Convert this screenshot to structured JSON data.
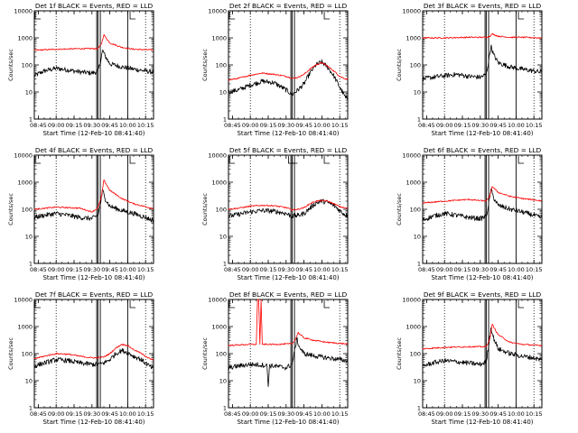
{
  "figure": {
    "xlabel": "Start Time (12-Feb-10 08:41:40)",
    "ylabel": "Counts/sec",
    "x_tick_labels": [
      "08:45",
      "09:00",
      "09:15",
      "09:30",
      "09:45",
      "10:00",
      "10:15"
    ],
    "y_tick_labels": [
      "1",
      "10",
      "100",
      "1000",
      "10000"
    ],
    "colors": {
      "events": "#000000",
      "lld": "#ff0000",
      "background": "#ffffff"
    }
  },
  "chart_data": [
    {
      "type": "line",
      "title": "Det 1f BLACK = Events, RED = LLD",
      "xlabel": "Start Time (12-Feb-10 08:41:40)",
      "ylabel": "Counts/sec",
      "xlim": [
        "08:41:40",
        "10:21:40"
      ],
      "ylim": [
        1,
        10000
      ],
      "yscale": "log",
      "markers": {
        "dotted": [
          "09:00",
          "10:15"
        ],
        "solid": [
          "09:34",
          "09:35",
          "09:37",
          "10:00"
        ],
        "saa": [
          "08:41",
          "10:02"
        ]
      },
      "series": [
        {
          "name": "Events",
          "color": "#000000",
          "x": [
            "08:41:40",
            "08:50",
            "09:00",
            "09:10",
            "09:20",
            "09:30",
            "09:35",
            "09:37",
            "09:39",
            "09:41",
            "09:45",
            "09:55",
            "10:05",
            "10:15",
            "10:20"
          ],
          "values": [
            40,
            60,
            75,
            65,
            55,
            50,
            58,
            120,
            350,
            220,
            110,
            85,
            70,
            60,
            55
          ]
        },
        {
          "name": "LLD",
          "color": "#ff0000",
          "x": [
            "08:41:40",
            "09:00",
            "09:20",
            "09:35",
            "09:38",
            "09:40",
            "09:45",
            "09:55",
            "10:05",
            "10:20"
          ],
          "values": [
            350,
            380,
            400,
            400,
            600,
            1300,
            650,
            450,
            380,
            360
          ]
        }
      ]
    },
    {
      "type": "line",
      "title": "Det 2f BLACK = Events, RED = LLD",
      "xlabel": "Start Time (12-Feb-10 08:41:40)",
      "ylabel": "Counts/sec",
      "xlim": [
        "08:41:40",
        "10:21:40"
      ],
      "ylim": [
        1,
        10000
      ],
      "yscale": "log",
      "markers": {
        "dotted": [
          "09:00",
          "10:15"
        ],
        "solid": [
          "09:34",
          "09:35",
          "09:37"
        ],
        "saa": [
          "08:41",
          "10:02"
        ]
      },
      "series": [
        {
          "name": "Events",
          "color": "#000000",
          "x": [
            "08:41:40",
            "08:50",
            "09:00",
            "09:10",
            "09:20",
            "09:30",
            "09:35",
            "09:40",
            "09:45",
            "09:50",
            "09:55",
            "10:00",
            "10:05",
            "10:10",
            "10:15",
            "10:20"
          ],
          "values": [
            10,
            12,
            18,
            25,
            22,
            12,
            8,
            12,
            20,
            50,
            100,
            130,
            80,
            40,
            15,
            6
          ]
        },
        {
          "name": "LLD",
          "color": "#ff0000",
          "x": [
            "08:41:40",
            "08:50",
            "09:00",
            "09:10",
            "09:20",
            "09:30",
            "09:35",
            "09:40",
            "09:45",
            "09:50",
            "09:55",
            "10:00",
            "10:05",
            "10:10",
            "10:15",
            "10:20"
          ],
          "values": [
            28,
            32,
            42,
            50,
            45,
            38,
            32,
            35,
            45,
            70,
            100,
            120,
            90,
            60,
            38,
            30
          ]
        }
      ]
    },
    {
      "type": "line",
      "title": "Det 3f BLACK = Events, RED = LLD",
      "xlabel": "Start Time (12-Feb-10 08:41:40)",
      "ylabel": "Counts/sec",
      "xlim": [
        "08:41:40",
        "10:21:40"
      ],
      "ylim": [
        1,
        10000
      ],
      "yscale": "log",
      "markers": {
        "dotted": [
          "09:00",
          "10:15"
        ],
        "solid": [
          "09:34",
          "09:35",
          "09:37",
          "10:00"
        ],
        "saa": [
          "10:02"
        ]
      },
      "series": [
        {
          "name": "Events",
          "color": "#000000",
          "x": [
            "08:41:40",
            "08:50",
            "09:00",
            "09:10",
            "09:20",
            "09:30",
            "09:35",
            "09:37",
            "09:39",
            "09:41",
            "09:45",
            "09:55",
            "10:05",
            "10:15",
            "10:20"
          ],
          "values": [
            30,
            35,
            40,
            45,
            38,
            35,
            45,
            140,
            500,
            250,
            120,
            85,
            70,
            60,
            55
          ]
        },
        {
          "name": "LLD",
          "color": "#ff0000",
          "x": [
            "08:41:40",
            "09:00",
            "09:20",
            "09:35",
            "09:38",
            "09:40",
            "09:45",
            "09:55",
            "10:05",
            "10:20"
          ],
          "values": [
            1000,
            1000,
            1050,
            1050,
            1150,
            1400,
            1150,
            1050,
            1050,
            1000
          ]
        }
      ]
    },
    {
      "type": "line",
      "title": "Det 4f BLACK = Events, RED = LLD",
      "xlabel": "Start Time (12-Feb-10 08:41:40)",
      "ylabel": "Counts/sec",
      "xlim": [
        "08:41:40",
        "10:21:40"
      ],
      "ylim": [
        1,
        10000
      ],
      "yscale": "log",
      "markers": {
        "dotted": [
          "09:00",
          "10:15"
        ],
        "solid": [
          "09:34",
          "09:35",
          "09:37",
          "10:00"
        ],
        "saa": [
          "08:41",
          "10:02"
        ]
      },
      "series": [
        {
          "name": "Events",
          "color": "#000000",
          "x": [
            "08:41:40",
            "08:50",
            "09:00",
            "09:10",
            "09:20",
            "09:30",
            "09:35",
            "09:37",
            "09:39",
            "09:41",
            "09:45",
            "09:55",
            "10:05",
            "10:15",
            "10:20"
          ],
          "values": [
            50,
            60,
            70,
            60,
            50,
            45,
            60,
            150,
            500,
            250,
            130,
            90,
            70,
            50,
            40
          ]
        },
        {
          "name": "LLD",
          "color": "#ff0000",
          "x": [
            "08:41:40",
            "09:00",
            "09:20",
            "09:30",
            "09:35",
            "09:38",
            "09:40",
            "09:45",
            "09:55",
            "10:05",
            "10:20"
          ],
          "values": [
            100,
            120,
            110,
            80,
            110,
            300,
            1200,
            500,
            250,
            160,
            110
          ]
        }
      ]
    },
    {
      "type": "line",
      "title": "Det 5f BLACK = Events, RED = LLD",
      "xlabel": "Start Time (12-Feb-10 08:41:40)",
      "ylabel": "Counts/sec",
      "xlim": [
        "08:41:40",
        "10:21:40"
      ],
      "ylim": [
        1,
        10000
      ],
      "yscale": "log",
      "markers": {
        "dotted": [
          "09:00",
          "10:15"
        ],
        "solid": [
          "09:34",
          "09:35",
          "09:37"
        ],
        "saa": [
          "08:41",
          "09:32",
          "09:35",
          "10:02"
        ]
      },
      "series": [
        {
          "name": "Events",
          "color": "#000000",
          "x": [
            "08:41:40",
            "08:50",
            "09:00",
            "09:10",
            "09:20",
            "09:30",
            "09:35",
            "09:40",
            "09:45",
            "09:50",
            "09:55",
            "10:00",
            "10:05",
            "10:10",
            "10:15",
            "10:20"
          ],
          "values": [
            55,
            65,
            80,
            90,
            85,
            70,
            55,
            60,
            70,
            110,
            170,
            200,
            180,
            140,
            90,
            60
          ]
        },
        {
          "name": "LLD",
          "color": "#ff0000",
          "x": [
            "08:41:40",
            "08:50",
            "09:00",
            "09:10",
            "09:20",
            "09:30",
            "09:35",
            "09:40",
            "09:45",
            "09:50",
            "09:55",
            "10:00",
            "10:05",
            "10:10",
            "10:15",
            "10:20"
          ],
          "values": [
            100,
            110,
            130,
            140,
            135,
            115,
            95,
            100,
            115,
            160,
            200,
            210,
            200,
            160,
            125,
            110
          ]
        }
      ]
    },
    {
      "type": "line",
      "title": "Det 6f BLACK = Events, RED = LLD",
      "xlabel": "Start Time (12-Feb-10 08:41:40)",
      "ylabel": "Counts/sec",
      "xlim": [
        "08:41:40",
        "10:21:40"
      ],
      "ylim": [
        1,
        10000
      ],
      "yscale": "log",
      "markers": {
        "dotted": [
          "09:00",
          "10:15"
        ],
        "solid": [
          "09:34",
          "09:35",
          "09:37",
          "10:00"
        ],
        "saa": [
          "10:02"
        ]
      },
      "series": [
        {
          "name": "Events",
          "color": "#000000",
          "x": [
            "08:41:40",
            "08:50",
            "09:00",
            "09:10",
            "09:20",
            "09:30",
            "09:35",
            "09:37",
            "09:39",
            "09:41",
            "09:45",
            "09:55",
            "10:05",
            "10:15",
            "10:20"
          ],
          "values": [
            40,
            55,
            70,
            60,
            50,
            45,
            55,
            150,
            550,
            280,
            140,
            100,
            80,
            60,
            50
          ]
        },
        {
          "name": "LLD",
          "color": "#ff0000",
          "x": [
            "08:41:40",
            "09:00",
            "09:20",
            "09:35",
            "09:38",
            "09:40",
            "09:45",
            "09:55",
            "10:05",
            "10:20"
          ],
          "values": [
            170,
            200,
            230,
            200,
            300,
            700,
            420,
            300,
            250,
            210
          ]
        }
      ]
    },
    {
      "type": "line",
      "title": "Det 7f BLACK = Events, RED = LLD",
      "xlabel": "Start Time (12-Feb-10 08:41:40)",
      "ylabel": "Counts/sec",
      "xlim": [
        "08:41:40",
        "10:21:40"
      ],
      "ylim": [
        1,
        10000
      ],
      "yscale": "log",
      "markers": {
        "dotted": [
          "09:00",
          "10:15"
        ],
        "solid": [
          "09:34",
          "09:35",
          "09:37",
          "10:00"
        ],
        "saa": [
          "08:41",
          "10:02"
        ]
      },
      "series": [
        {
          "name": "Events",
          "color": "#000000",
          "x": [
            "08:41:40",
            "08:50",
            "09:00",
            "09:10",
            "09:20",
            "09:30",
            "09:35",
            "09:40",
            "09:45",
            "09:50",
            "09:55",
            "10:00",
            "10:05",
            "10:10",
            "10:15",
            "10:20"
          ],
          "values": [
            35,
            45,
            60,
            55,
            45,
            40,
            40,
            45,
            60,
            100,
            130,
            110,
            80,
            65,
            45,
            30
          ]
        },
        {
          "name": "LLD",
          "color": "#ff0000",
          "x": [
            "08:41:40",
            "08:50",
            "09:00",
            "09:10",
            "09:20",
            "09:30",
            "09:35",
            "09:40",
            "09:45",
            "09:50",
            "09:55",
            "10:00",
            "10:05",
            "10:10",
            "10:15",
            "10:20"
          ],
          "values": [
            65,
            80,
            100,
            95,
            80,
            70,
            70,
            75,
            100,
            160,
            220,
            200,
            140,
            110,
            80,
            60
          ]
        }
      ]
    },
    {
      "type": "line",
      "title": "Det 8f BLACK = Events, RED = LLD",
      "xlabel": "Start Time (12-Feb-10 08:41:40)",
      "ylabel": "Counts/sec",
      "xlim": [
        "08:41:40",
        "10:21:40"
      ],
      "ylim": [
        1,
        10000
      ],
      "yscale": "log",
      "markers": {
        "dotted": [
          "09:00",
          "10:15"
        ],
        "solid": [
          "09:34",
          "09:35",
          "09:37"
        ],
        "saa": [
          "08:41",
          "10:02"
        ]
      },
      "series": [
        {
          "name": "Events",
          "color": "#000000",
          "x": [
            "08:41:40",
            "08:50",
            "09:00",
            "09:10",
            "09:14",
            "09:15",
            "09:16",
            "09:20",
            "09:30",
            "09:35",
            "09:37",
            "09:39",
            "09:41",
            "09:45",
            "09:55",
            "10:05",
            "10:15",
            "10:20"
          ],
          "values": [
            30,
            35,
            40,
            38,
            36,
            6,
            35,
            35,
            30,
            40,
            120,
            350,
            180,
            100,
            80,
            70,
            60,
            55
          ]
        },
        {
          "name": "LLD",
          "color": "#ff0000",
          "x": [
            "08:41:40",
            "08:50",
            "09:00",
            "09:05",
            "09:06",
            "09:07",
            "09:08",
            "09:09",
            "09:10",
            "09:20",
            "09:35",
            "09:38",
            "09:40",
            "09:45",
            "09:55",
            "10:05",
            "10:20"
          ],
          "values": [
            200,
            210,
            220,
            220,
            10000,
            10000,
            220,
            10000,
            220,
            220,
            230,
            350,
            600,
            380,
            300,
            260,
            230
          ]
        }
      ]
    },
    {
      "type": "line",
      "title": "Det 9f BLACK = Events, RED = LLD",
      "xlabel": "Start Time (12-Feb-10 08:41:40)",
      "ylabel": "Counts/sec",
      "xlim": [
        "08:41:40",
        "10:21:40"
      ],
      "ylim": [
        1,
        10000
      ],
      "yscale": "log",
      "markers": {
        "dotted": [
          "09:00",
          "10:15"
        ],
        "solid": [
          "09:34",
          "09:35",
          "09:37",
          "10:00"
        ],
        "saa": [
          "10:02"
        ]
      },
      "series": [
        {
          "name": "Events",
          "color": "#000000",
          "x": [
            "08:41:40",
            "08:50",
            "09:00",
            "09:10",
            "09:20",
            "09:30",
            "09:35",
            "09:37",
            "09:39",
            "09:41",
            "09:45",
            "09:55",
            "10:05",
            "10:15",
            "10:20"
          ],
          "values": [
            35,
            45,
            55,
            50,
            45,
            40,
            50,
            200,
            900,
            400,
            150,
            100,
            80,
            70,
            60
          ]
        },
        {
          "name": "LLD",
          "color": "#ff0000",
          "x": [
            "08:41:40",
            "09:00",
            "09:20",
            "09:35",
            "09:38",
            "09:40",
            "09:45",
            "09:55",
            "10:05",
            "10:20"
          ],
          "values": [
            150,
            170,
            180,
            180,
            350,
            1200,
            500,
            260,
            220,
            200
          ]
        }
      ]
    }
  ]
}
